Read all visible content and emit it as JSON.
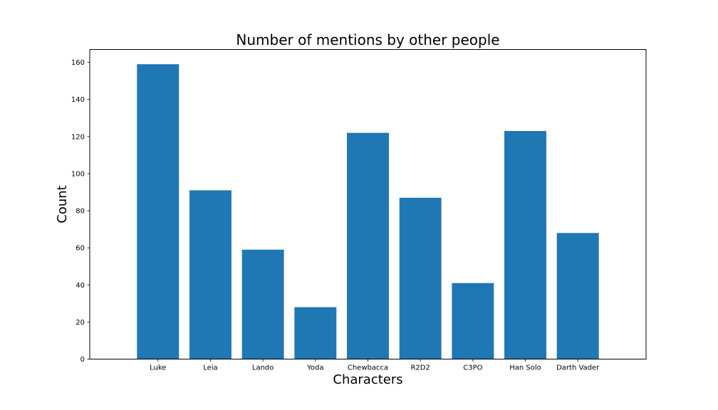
{
  "chart_data": {
    "type": "bar",
    "title": "Number of mentions by other people",
    "xlabel": "Characters",
    "ylabel": "Count",
    "categories": [
      "Luke",
      "Leia",
      "Lando",
      "Yoda",
      "Chewbacca",
      "R2D2",
      "C3PO",
      "Han Solo",
      "Darth Vader"
    ],
    "values": [
      159,
      91,
      59,
      28,
      122,
      87,
      41,
      123,
      68
    ],
    "ylim": [
      0,
      166.95
    ],
    "yticks": [
      0,
      20,
      40,
      60,
      80,
      100,
      120,
      140,
      160
    ],
    "grid": false,
    "bar_color": "#1f77b4"
  }
}
